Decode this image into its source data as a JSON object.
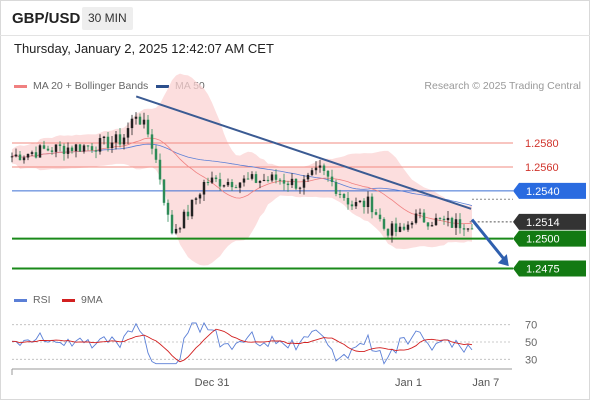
{
  "header": {
    "pair": "GBP/USD",
    "timeframe": "30 MIN"
  },
  "datetime": "Thursday, January 2, 2025 12:42:07 AM CET",
  "legend": {
    "ma20": {
      "label": "MA 20 + Bollinger Bands",
      "color": "#f08080"
    },
    "ma50": {
      "label": "MA 50",
      "color": "#2c4f8c"
    },
    "copyright": "Research © 2025 Trading Central"
  },
  "rsi_legend": {
    "rsi": {
      "label": "RSI",
      "color": "#5b7fd6"
    },
    "ma9": {
      "label": "9MA",
      "color": "#d22020"
    }
  },
  "chart_data": [
    {
      "type": "candlestick",
      "ylim": [
        1.2457,
        1.2606
      ],
      "price_levels": [
        {
          "value": 1.258,
          "label": "1.2580",
          "style": "resistance"
        },
        {
          "value": 1.256,
          "label": "1.2560",
          "style": "resistance"
        },
        {
          "value": 1.254,
          "label": "1.2540",
          "style": "pivot"
        },
        {
          "value": 1.2514,
          "label": "1.2514",
          "style": "current"
        },
        {
          "value": 1.25,
          "label": "1.2500",
          "style": "support"
        },
        {
          "value": 1.2475,
          "label": "1.2475",
          "style": "support"
        }
      ],
      "trendline": {
        "start": [
          0.27,
          1.2619
        ],
        "end": [
          0.998,
          1.2525
        ]
      },
      "forecast_arrow": {
        "start": [
          1.0,
          1.2516
        ],
        "end": [
          1.08,
          1.2477
        ]
      },
      "x_labels": [
        {
          "label": "Dec 31",
          "at": 0.435
        },
        {
          "label": "Jan 1",
          "at": 0.862
        },
        {
          "label": "Jan 7",
          "at": 1.03
        }
      ],
      "colors": {
        "up": "#222222",
        "down": "#2e8b57",
        "band": "#fbd3d3",
        "ma20": "#f08080",
        "ma50": "#5b7fd6"
      }
    },
    {
      "type": "line",
      "title": "RSI",
      "ylim": [
        20,
        80
      ],
      "y_ticks": [
        {
          "label": "70",
          "value": 70
        },
        {
          "label": "50",
          "value": 50
        },
        {
          "label": "30",
          "value": 30
        }
      ]
    }
  ]
}
